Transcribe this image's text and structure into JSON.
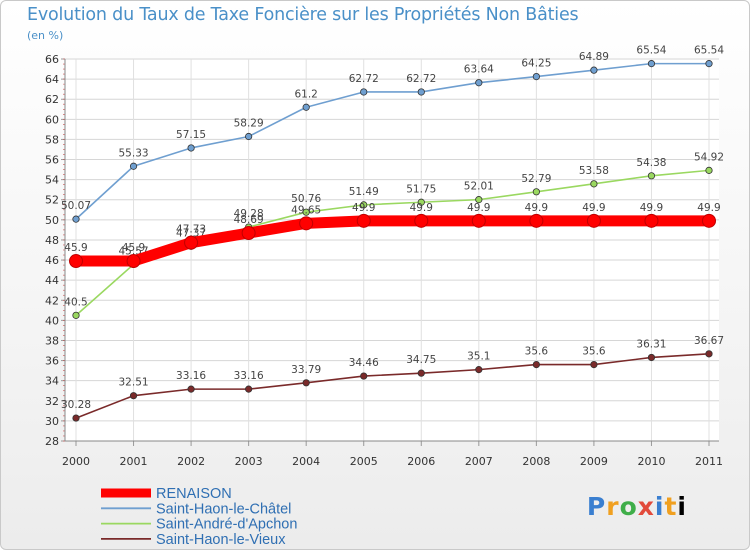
{
  "title": "Evolution du Taux de Taxe Foncière sur les Propriétés Non Bâties",
  "unit_label": "(en %)",
  "logo_text": "Proxiti",
  "chart_data": {
    "type": "line",
    "x": [
      "2000",
      "2001",
      "2002",
      "2003",
      "2004",
      "2005",
      "2006",
      "2007",
      "2008",
      "2009",
      "2010",
      "2011"
    ],
    "ylim": [
      28,
      66
    ],
    "yticks": [
      28,
      30,
      32,
      34,
      36,
      38,
      40,
      42,
      44,
      46,
      48,
      50,
      52,
      54,
      56,
      58,
      60,
      62,
      64,
      66
    ],
    "grid": true,
    "legend_position": "bottom-left",
    "series": [
      {
        "name": "RENAISON",
        "color": "#ff0000",
        "emphasis": true,
        "values": [
          45.9,
          45.9,
          47.73,
          48.69,
          49.65,
          49.9,
          49.9,
          49.9,
          49.9,
          49.9,
          49.9,
          49.9
        ],
        "labels": [
          "45.9",
          "45.9",
          "47.73",
          "48.69",
          "49.65",
          "49.9",
          "49.9",
          "49.9",
          "49.9",
          "49.9",
          "49.9",
          "49.9"
        ]
      },
      {
        "name": "Saint-Haon-le-Châtel",
        "color": "#6f9fd0",
        "emphasis": false,
        "values": [
          50.07,
          55.33,
          57.15,
          58.29,
          61.2,
          62.72,
          62.72,
          63.64,
          64.25,
          64.89,
          65.54,
          65.54
        ],
        "labels": [
          "50.07",
          "55.33",
          "57.15",
          "58.29",
          "61.2",
          "62.72",
          "62.72",
          "63.64",
          "64.25",
          "64.89",
          "65.54",
          "65.54"
        ]
      },
      {
        "name": "Saint-André-d'Apchon",
        "color": "#9ad860",
        "emphasis": false,
        "values": [
          40.5,
          45.57,
          47.37,
          49.28,
          50.76,
          51.49,
          51.75,
          52.01,
          52.79,
          53.58,
          54.38,
          54.92
        ],
        "labels": [
          "40.5",
          "45.57",
          "47.37",
          "49.28",
          "50.76",
          "51.49",
          "51.75",
          "52.01",
          "52.79",
          "53.58",
          "54.38",
          "54.92"
        ]
      },
      {
        "name": "Saint-Haon-le-Vieux",
        "color": "#7a2a2a",
        "emphasis": false,
        "values": [
          30.28,
          32.51,
          33.16,
          33.16,
          33.79,
          34.46,
          34.75,
          35.1,
          35.6,
          35.6,
          36.31,
          36.67
        ],
        "labels": [
          "30.28",
          "32.51",
          "33.16",
          "33.16",
          "33.79",
          "34.46",
          "34.75",
          "35.1",
          "35.6",
          "35.6",
          "36.31",
          "36.67"
        ]
      }
    ]
  }
}
